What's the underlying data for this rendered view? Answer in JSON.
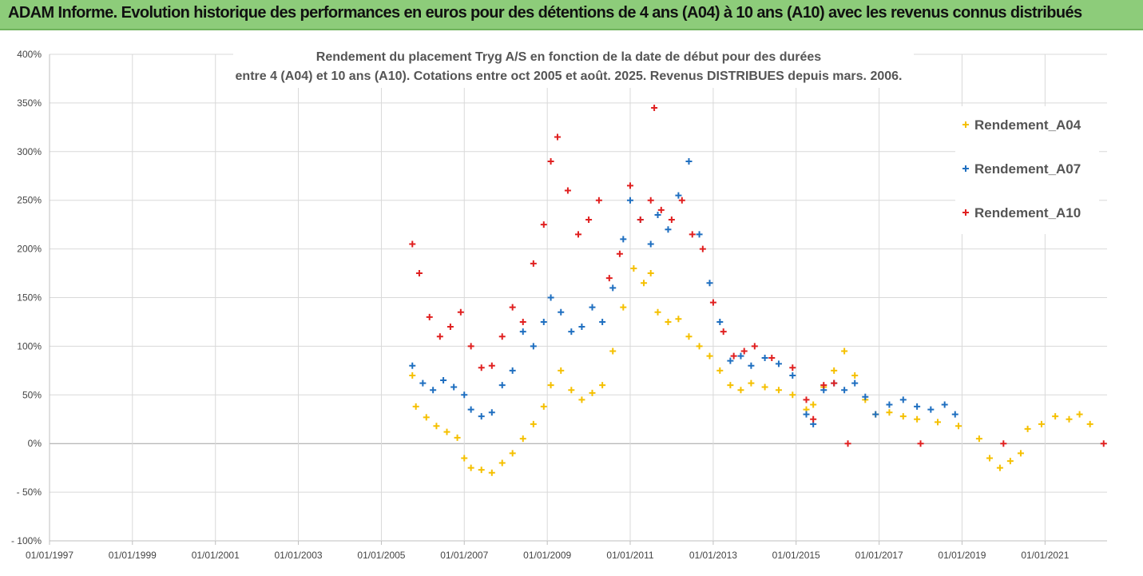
{
  "header": {
    "title": "ADAM Informe. Evolution historique des performances en euros pour des détentions de 4 ans (A04) à 10 ans (A10) avec les revenus connus distribués"
  },
  "chart_data": {
    "type": "scatter",
    "title_lines": [
      "Rendement du placement Tryg A/S en fonction de la date de début pour des durées",
      "entre 4 (A04) et 10 ans (A10). Cotations entre oct 2005 et août. 2025. Revenus DISTRIBUES depuis mars. 2006."
    ],
    "xlabel": "",
    "ylabel": "",
    "x_range": [
      "01/01/1997",
      "01/07/2022"
    ],
    "x_ticks": [
      "01/01/1997",
      "01/01/1999",
      "01/01/2001",
      "01/01/2003",
      "01/01/2005",
      "01/01/2007",
      "01/01/2009",
      "01/01/2011",
      "01/01/2013",
      "01/01/2015",
      "01/01/2017",
      "01/01/2019",
      "01/01/2021"
    ],
    "ylim": [
      -100,
      400
    ],
    "y_ticks": [
      -100,
      -50,
      0,
      50,
      100,
      150,
      200,
      250,
      300,
      350,
      400
    ],
    "y_tick_labels": [
      "- 100%",
      "- 50%",
      "0%",
      "50%",
      "100%",
      "150%",
      "200%",
      "250%",
      "300%",
      "350%",
      "400%"
    ],
    "grid": "horizontal and vertical",
    "legend_position": "top-right",
    "series": [
      {
        "name": "Rendement_A04",
        "color": "#f5c000",
        "marker": "+",
        "points": [
          [
            "01/10/2005",
            70
          ],
          [
            "01/11/2005",
            38
          ],
          [
            "01/02/2006",
            27
          ],
          [
            "01/05/2006",
            18
          ],
          [
            "01/08/2006",
            12
          ],
          [
            "01/11/2006",
            6
          ],
          [
            "01/01/2007",
            -15
          ],
          [
            "01/03/2007",
            -25
          ],
          [
            "01/06/2007",
            -27
          ],
          [
            "01/09/2007",
            -30
          ],
          [
            "01/12/2007",
            -20
          ],
          [
            "01/03/2008",
            -10
          ],
          [
            "01/06/2008",
            5
          ],
          [
            "01/09/2008",
            20
          ],
          [
            "01/12/2008",
            38
          ],
          [
            "01/02/2009",
            60
          ],
          [
            "01/05/2009",
            75
          ],
          [
            "01/08/2009",
            55
          ],
          [
            "01/11/2009",
            45
          ],
          [
            "01/02/2010",
            52
          ],
          [
            "01/05/2010",
            60
          ],
          [
            "01/08/2010",
            95
          ],
          [
            "01/11/2010",
            140
          ],
          [
            "01/02/2011",
            180
          ],
          [
            "01/05/2011",
            165
          ],
          [
            "01/07/2011",
            175
          ],
          [
            "01/09/2011",
            135
          ],
          [
            "01/12/2011",
            125
          ],
          [
            "01/03/2012",
            128
          ],
          [
            "01/06/2012",
            110
          ],
          [
            "01/09/2012",
            100
          ],
          [
            "01/12/2012",
            90
          ],
          [
            "01/03/2013",
            75
          ],
          [
            "01/06/2013",
            60
          ],
          [
            "01/09/2013",
            55
          ],
          [
            "01/12/2013",
            62
          ],
          [
            "01/04/2014",
            58
          ],
          [
            "01/08/2014",
            55
          ],
          [
            "01/12/2014",
            50
          ],
          [
            "01/04/2015",
            35
          ],
          [
            "01/06/2015",
            40
          ],
          [
            "01/09/2015",
            58
          ],
          [
            "01/12/2015",
            75
          ],
          [
            "01/03/2016",
            95
          ],
          [
            "01/06/2016",
            70
          ],
          [
            "01/09/2016",
            45
          ],
          [
            "01/12/2016",
            30
          ],
          [
            "01/04/2017",
            32
          ],
          [
            "01/08/2017",
            28
          ],
          [
            "01/12/2017",
            25
          ],
          [
            "01/06/2018",
            22
          ],
          [
            "01/12/2018",
            18
          ],
          [
            "01/06/2019",
            5
          ],
          [
            "01/09/2019",
            -15
          ],
          [
            "01/12/2019",
            -25
          ],
          [
            "01/03/2020",
            -18
          ],
          [
            "01/06/2020",
            -10
          ],
          [
            "01/08/2020",
            15
          ],
          [
            "01/12/2020",
            20
          ],
          [
            "01/04/2021",
            28
          ],
          [
            "01/08/2021",
            25
          ],
          [
            "01/11/2021",
            30
          ],
          [
            "01/02/2022",
            20
          ]
        ]
      },
      {
        "name": "Rendement_A07",
        "color": "#1f6fc0",
        "marker": "+",
        "points": [
          [
            "01/10/2005",
            80
          ],
          [
            "01/01/2006",
            62
          ],
          [
            "01/04/2006",
            55
          ],
          [
            "01/07/2006",
            65
          ],
          [
            "01/10/2006",
            58
          ],
          [
            "01/01/2007",
            50
          ],
          [
            "01/03/2007",
            35
          ],
          [
            "01/06/2007",
            28
          ],
          [
            "01/09/2007",
            32
          ],
          [
            "01/12/2007",
            60
          ],
          [
            "01/03/2008",
            75
          ],
          [
            "01/06/2008",
            115
          ],
          [
            "01/09/2008",
            100
          ],
          [
            "01/12/2008",
            125
          ],
          [
            "01/02/2009",
            150
          ],
          [
            "01/05/2009",
            135
          ],
          [
            "01/08/2009",
            115
          ],
          [
            "01/11/2009",
            120
          ],
          [
            "01/02/2010",
            140
          ],
          [
            "01/05/2010",
            125
          ],
          [
            "01/08/2010",
            160
          ],
          [
            "01/11/2010",
            210
          ],
          [
            "01/01/2011",
            250
          ],
          [
            "01/04/2011",
            230
          ],
          [
            "01/07/2011",
            205
          ],
          [
            "01/09/2011",
            235
          ],
          [
            "01/12/2011",
            220
          ],
          [
            "01/03/2012",
            255
          ],
          [
            "01/06/2012",
            290
          ],
          [
            "01/09/2012",
            215
          ],
          [
            "01/12/2012",
            165
          ],
          [
            "01/03/2013",
            125
          ],
          [
            "01/06/2013",
            85
          ],
          [
            "01/09/2013",
            90
          ],
          [
            "01/12/2013",
            80
          ],
          [
            "01/04/2014",
            88
          ],
          [
            "01/08/2014",
            82
          ],
          [
            "01/12/2014",
            70
          ],
          [
            "01/04/2015",
            30
          ],
          [
            "01/06/2015",
            20
          ],
          [
            "01/09/2015",
            55
          ],
          [
            "01/12/2015",
            62
          ],
          [
            "01/03/2016",
            55
          ],
          [
            "01/06/2016",
            62
          ],
          [
            "01/09/2016",
            48
          ],
          [
            "01/12/2016",
            30
          ],
          [
            "01/04/2017",
            40
          ],
          [
            "01/08/2017",
            45
          ],
          [
            "01/12/2017",
            38
          ],
          [
            "01/04/2018",
            35
          ],
          [
            "01/08/2018",
            40
          ],
          [
            "01/11/2018",
            30
          ]
        ]
      },
      {
        "name": "Rendement_A10",
        "color": "#e02020",
        "marker": "+",
        "points": [
          [
            "01/10/2005",
            205
          ],
          [
            "01/12/2005",
            175
          ],
          [
            "01/03/2006",
            130
          ],
          [
            "01/06/2006",
            110
          ],
          [
            "01/09/2006",
            120
          ],
          [
            "01/12/2006",
            135
          ],
          [
            "01/03/2007",
            100
          ],
          [
            "01/06/2007",
            78
          ],
          [
            "01/09/2007",
            80
          ],
          [
            "01/12/2007",
            110
          ],
          [
            "01/03/2008",
            140
          ],
          [
            "01/06/2008",
            125
          ],
          [
            "01/09/2008",
            185
          ],
          [
            "01/12/2008",
            225
          ],
          [
            "01/02/2009",
            290
          ],
          [
            "01/04/2009",
            315
          ],
          [
            "01/07/2009",
            260
          ],
          [
            "01/10/2009",
            215
          ],
          [
            "01/01/2010",
            230
          ],
          [
            "01/04/2010",
            250
          ],
          [
            "01/07/2010",
            170
          ],
          [
            "01/10/2010",
            195
          ],
          [
            "01/01/2011",
            265
          ],
          [
            "01/04/2011",
            230
          ],
          [
            "01/07/2011",
            250
          ],
          [
            "01/08/2011",
            345
          ],
          [
            "01/10/2011",
            240
          ],
          [
            "01/01/2012",
            230
          ],
          [
            "01/04/2012",
            250
          ],
          [
            "01/07/2012",
            215
          ],
          [
            "01/10/2012",
            200
          ],
          [
            "01/01/2013",
            145
          ],
          [
            "01/04/2013",
            115
          ],
          [
            "01/07/2013",
            90
          ],
          [
            "01/10/2013",
            95
          ],
          [
            "01/01/2014",
            100
          ],
          [
            "01/06/2014",
            88
          ],
          [
            "01/12/2014",
            78
          ],
          [
            "01/04/2015",
            45
          ],
          [
            "01/06/2015",
            25
          ],
          [
            "01/09/2015",
            60
          ],
          [
            "01/12/2015",
            62
          ],
          [
            "01/04/2016",
            0
          ],
          [
            "01/01/2018",
            0
          ],
          [
            "01/01/2020",
            0
          ],
          [
            "01/06/2022",
            0
          ]
        ]
      }
    ]
  }
}
